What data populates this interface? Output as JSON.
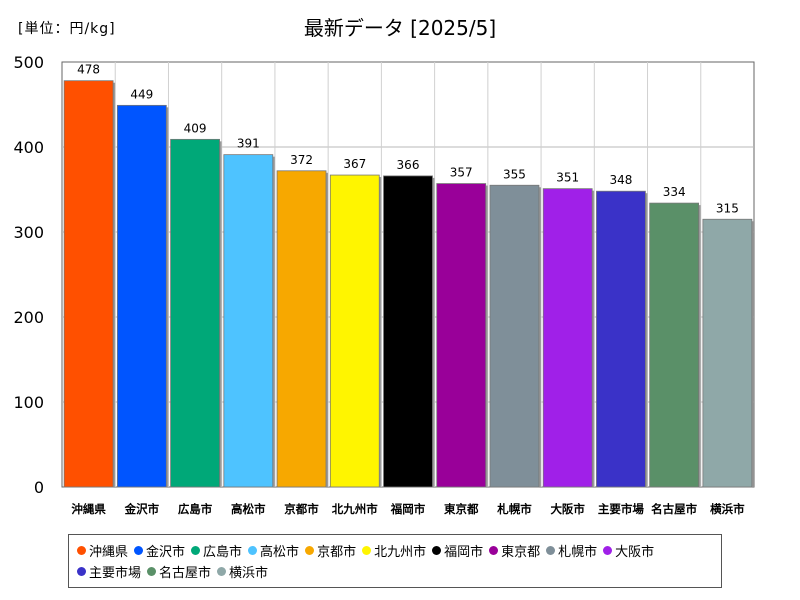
{
  "header": {
    "unit_label": "[単位：円/kg]",
    "title": "最新データ [2025/5]"
  },
  "chart_data": {
    "type": "bar",
    "title": "最新データ [2025/5]",
    "ylabel": "[単位：円/kg]",
    "xlabel": "",
    "ylim": [
      0,
      500
    ],
    "yticks": [
      0,
      100,
      200,
      300,
      400,
      500
    ],
    "grid": true,
    "legend_position": "bottom",
    "categories": [
      "沖縄県",
      "金沢市",
      "広島市",
      "高松市",
      "京都市",
      "北九州市",
      "福岡市",
      "東京都",
      "札幌市",
      "大阪市",
      "主要市場",
      "名古屋市",
      "横浜市"
    ],
    "values": [
      478,
      449,
      409,
      391,
      372,
      367,
      366,
      357,
      355,
      351,
      348,
      334,
      315
    ],
    "colors": [
      "#ff5000",
      "#0055ff",
      "#00a878",
      "#4ec3ff",
      "#f7a800",
      "#fff500",
      "#000000",
      "#990099",
      "#7f8f99",
      "#a020e8",
      "#3a32c8",
      "#5a9068",
      "#8fa8a8"
    ]
  }
}
